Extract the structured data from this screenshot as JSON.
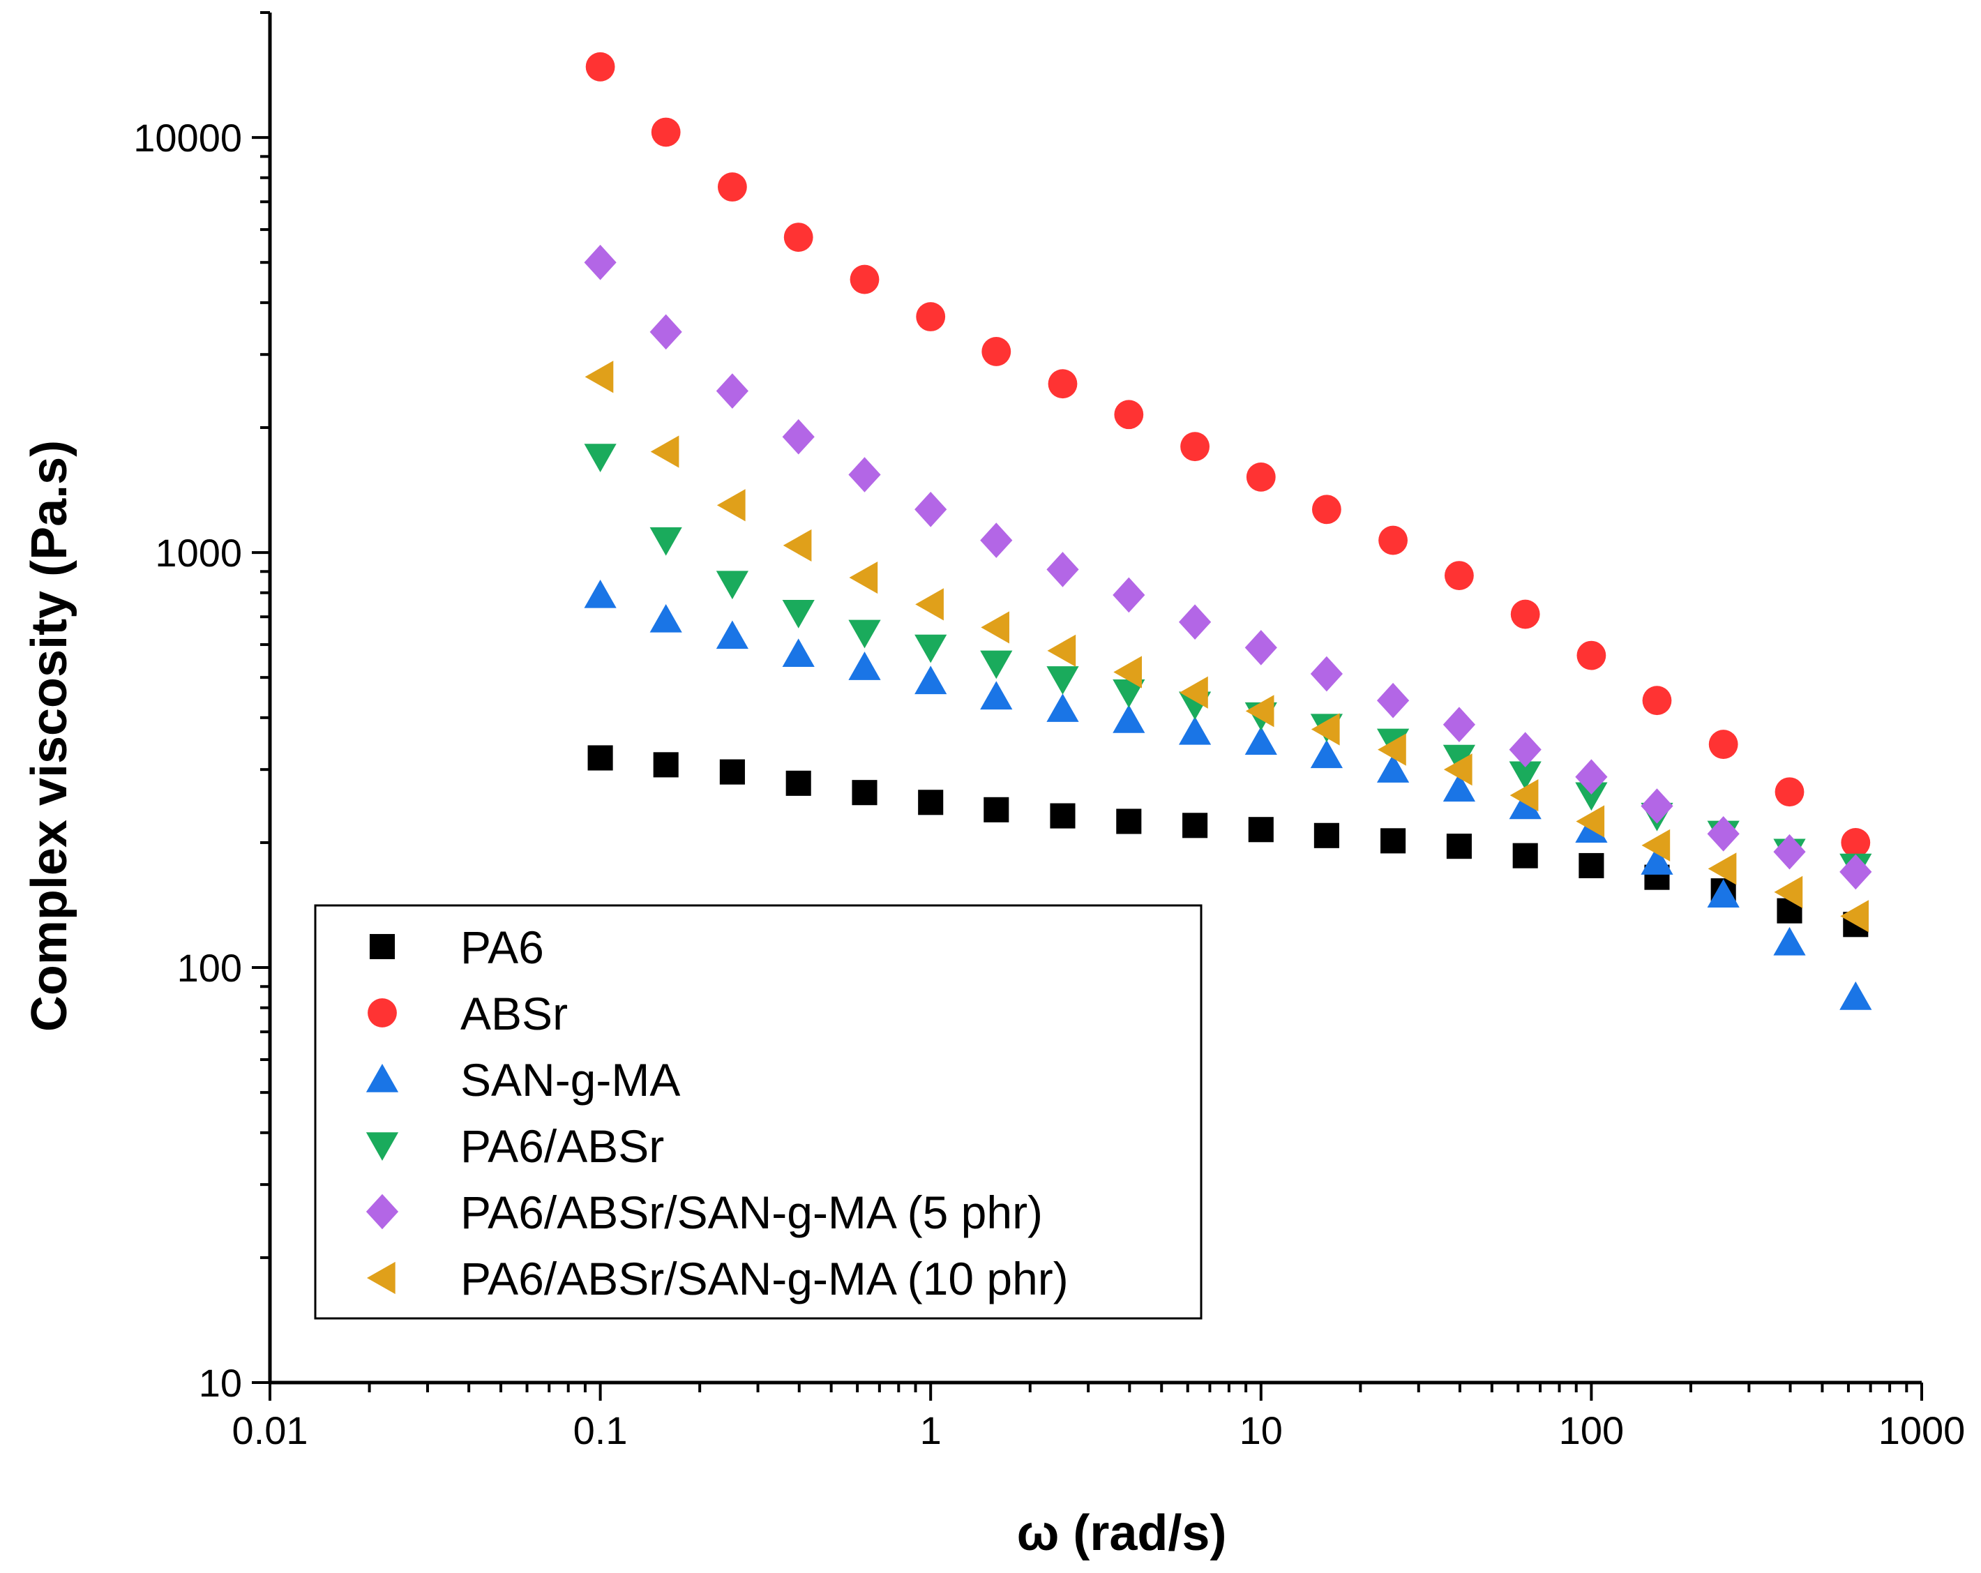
{
  "chart_data": {
    "type": "scatter",
    "xlabel": "ω (rad/s)",
    "ylabel": "Complex viscosity (Pa.s)",
    "xscale": "log",
    "yscale": "log",
    "xlim": [
      0.01,
      1000
    ],
    "ylim": [
      10,
      20000
    ],
    "xticks": [
      "0.01",
      "0.1",
      "1",
      "10",
      "100",
      "1000"
    ],
    "yticks": [
      "10",
      "100",
      "1000",
      "10000"
    ],
    "grid": false,
    "legend_position": "bottom-left",
    "x": [
      0.1,
      0.158,
      0.251,
      0.398,
      0.631,
      1,
      1.58,
      2.51,
      3.98,
      6.31,
      10,
      15.8,
      25.1,
      39.8,
      63.1,
      100,
      158,
      251,
      398,
      631
    ],
    "series": [
      {
        "name": "PA6",
        "marker": "square",
        "color": "#000000",
        "values": [
          320,
          308,
          296,
          278,
          264,
          250,
          240,
          232,
          225,
          220,
          215,
          208,
          202,
          196,
          186,
          176,
          165,
          153,
          137,
          127
        ]
      },
      {
        "name": "ABSr",
        "marker": "circle",
        "color": "#ff3333",
        "values": [
          14800,
          10300,
          7600,
          5750,
          4550,
          3700,
          3050,
          2550,
          2150,
          1800,
          1520,
          1270,
          1070,
          880,
          710,
          565,
          440,
          345,
          265,
          200
        ]
      },
      {
        "name": "SAN-g-MA",
        "marker": "triangle-up",
        "color": "#1a75e6",
        "values": [
          790,
          690,
          630,
          570,
          530,
          490,
          450,
          420,
          395,
          370,
          350,
          325,
          300,
          270,
          245,
          215,
          180,
          150,
          115,
          85
        ]
      },
      {
        "name": "PA6/ABSr",
        "marker": "triangle-down",
        "color": "#1aab5c",
        "values": [
          1700,
          1070,
          840,
          715,
          640,
          590,
          540,
          495,
          460,
          430,
          405,
          380,
          350,
          320,
          292,
          260,
          232,
          210,
          190,
          175
        ]
      },
      {
        "name": "PA6/ABSr/SAN-g-MA (5 phr)",
        "marker": "diamond",
        "color": "#b366e6",
        "values": [
          5000,
          3400,
          2450,
          1900,
          1540,
          1270,
          1070,
          910,
          790,
          680,
          590,
          510,
          440,
          385,
          335,
          288,
          245,
          210,
          190,
          170
        ]
      },
      {
        "name": "PA6/ABSr/SAN-g-MA (10 phr)",
        "marker": "triangle-left",
        "color": "#e0a01a",
        "values": [
          2650,
          1750,
          1300,
          1040,
          870,
          750,
          660,
          580,
          515,
          460,
          415,
          375,
          335,
          300,
          260,
          225,
          197,
          173,
          152,
          133
        ]
      }
    ]
  }
}
